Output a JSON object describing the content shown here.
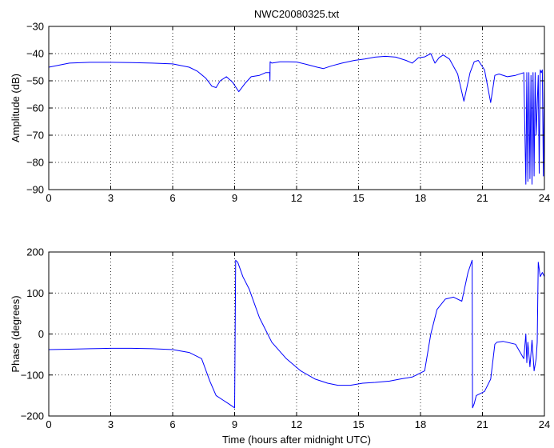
{
  "colors": {
    "series": "#0000ff",
    "axes": "#000000",
    "grid": "#000000",
    "background": "#ffffff"
  },
  "chart_data": [
    {
      "type": "line",
      "title": "NWC20080325.txt",
      "xlabel": "",
      "ylabel": "Amplitude (dB)",
      "xlim": [
        0,
        24
      ],
      "ylim": [
        -90,
        -30
      ],
      "x_ticks": [
        0,
        3,
        6,
        9,
        12,
        15,
        18,
        21,
        24
      ],
      "y_ticks": [
        -90,
        -80,
        -70,
        -60,
        -50,
        -40,
        -30
      ],
      "grid": true,
      "series": [
        {
          "x": [
            0,
            1,
            2,
            3,
            4,
            5,
            6,
            6.8,
            7.2,
            7.6,
            7.9,
            8.1,
            8.3,
            8.6,
            8.9,
            9.2,
            9.5,
            9.8,
            10.2,
            10.5,
            10.7,
            10.71,
            10.72,
            10.8,
            11.2,
            11.6,
            12,
            12.5,
            13,
            13.3,
            13.7,
            14.2,
            14.8,
            15.3,
            15.8,
            16.3,
            16.8,
            17.3,
            17.6,
            17.9,
            18.2,
            18.5,
            18.7,
            18.9,
            19.1,
            19.4,
            19.8,
            20.1,
            20.4,
            20.6,
            20.8,
            21.1,
            21.4,
            21.6,
            21.8,
            22.2,
            22.6,
            23,
            23.1,
            23.15,
            23.2,
            23.25,
            23.3,
            23.35,
            23.4,
            23.45,
            23.5,
            23.55,
            23.6,
            23.7,
            23.75,
            23.8,
            23.85,
            23.9,
            23.95,
            24
          ],
          "y": [
            -45,
            -43.5,
            -43.2,
            -43.2,
            -43.3,
            -43.5,
            -43.8,
            -45,
            -46.5,
            -49,
            -52,
            -52.5,
            -50,
            -48.5,
            -50.5,
            -54,
            -51,
            -48.5,
            -48,
            -47,
            -47,
            -50,
            -43,
            -43.5,
            -43,
            -43,
            -43.1,
            -44,
            -45,
            -45.5,
            -44.5,
            -43.5,
            -42.5,
            -42,
            -41.3,
            -41,
            -41.3,
            -42.5,
            -43.5,
            -41.5,
            -41.2,
            -40,
            -43.5,
            -41.5,
            -40.5,
            -42,
            -47.5,
            -57.5,
            -47,
            -43,
            -42.5,
            -46,
            -58,
            -48,
            -47.5,
            -48.5,
            -48,
            -47,
            -88,
            -47,
            -87,
            -47,
            -86,
            -48,
            -88,
            -47,
            -85,
            -47,
            -70,
            -48,
            -84,
            -46,
            -47,
            -46,
            -85,
            -46
          ]
        }
      ]
    },
    {
      "type": "line",
      "title": "",
      "xlabel": "Time (hours after midnight UTC)",
      "ylabel": "Phase (degrees)",
      "xlim": [
        0,
        24
      ],
      "ylim": [
        -200,
        200
      ],
      "x_ticks": [
        0,
        3,
        6,
        9,
        12,
        15,
        18,
        21,
        24
      ],
      "y_ticks": [
        -200,
        -100,
        0,
        100,
        200
      ],
      "grid": true,
      "series": [
        {
          "x": [
            0,
            1,
            2,
            3,
            4,
            5,
            6,
            6.8,
            7.4,
            7.8,
            8.1,
            8.4,
            8.7,
            9.0,
            9.05,
            9.15,
            9.4,
            9.7,
            10.2,
            10.8,
            11.5,
            12.2,
            12.9,
            13.5,
            14,
            14.6,
            15.2,
            15.8,
            16.5,
            17,
            17.6,
            18.2,
            18.5,
            18.8,
            19.2,
            19.6,
            20,
            20.3,
            20.5,
            20.52,
            20.6,
            20.7,
            21.1,
            21.4,
            21.6,
            21.7,
            22,
            22.6,
            23,
            23.1,
            23.15,
            23.2,
            23.3,
            23.4,
            23.5,
            23.6,
            23.65,
            23.7,
            23.8,
            23.9,
            24
          ],
          "y": [
            -38,
            -37,
            -36,
            -35,
            -35,
            -36,
            -38,
            -45,
            -60,
            -115,
            -150,
            -160,
            -170,
            -180,
            180,
            175,
            140,
            110,
            40,
            -20,
            -60,
            -90,
            -110,
            -120,
            -125,
            -125,
            -120,
            -118,
            -115,
            -110,
            -105,
            -90,
            0,
            60,
            85,
            90,
            80,
            150,
            180,
            -180,
            -170,
            -150,
            -140,
            -110,
            -25,
            -20,
            -18,
            -25,
            -60,
            0,
            -70,
            -20,
            -80,
            -15,
            -90,
            -60,
            -20,
            175,
            140,
            150,
            140
          ]
        }
      ]
    }
  ]
}
